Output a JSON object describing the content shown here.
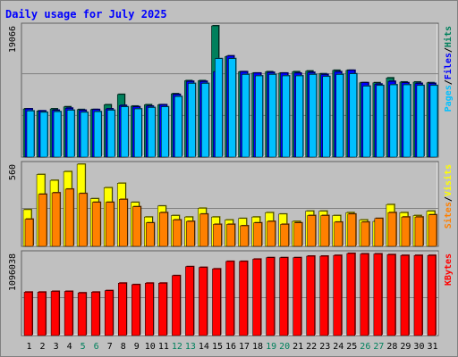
{
  "colors": {
    "hits": "#00805c",
    "files": "#0000ff",
    "pages": "#00c0ff",
    "visits": "#ffff00",
    "sites": "#ff8000",
    "kbytes": "#ff0000",
    "title": "#0000ff",
    "weekend_label": "#00805c",
    "grid": "#808080",
    "panel_bg": "#c0c0c0"
  },
  "chart_data": {
    "type": "bar",
    "title": "Daily usage for July 2025",
    "categories": [
      "1",
      "2",
      "3",
      "4",
      "5",
      "6",
      "7",
      "8",
      "9",
      "10",
      "11",
      "12",
      "13",
      "14",
      "15",
      "16",
      "17",
      "18",
      "19",
      "20",
      "21",
      "22",
      "23",
      "24",
      "25",
      "26",
      "27",
      "28",
      "29",
      "30",
      "31"
    ],
    "weekend_days": [
      "5",
      "6",
      "12",
      "13",
      "19",
      "20",
      "26",
      "27"
    ],
    "panels": [
      {
        "name": "usage-panel",
        "ymax_label": "19066",
        "ymax": 19066,
        "legend": [
          {
            "text": "Pages",
            "color_key": "pages"
          },
          {
            "text": "/",
            "color_key": "separator"
          },
          {
            "text": "Files",
            "color_key": "files"
          },
          {
            "text": "/",
            "color_key": "separator"
          },
          {
            "text": "Hits",
            "color_key": "hits"
          }
        ],
        "series": [
          {
            "name": "Hits",
            "color_key": "hits",
            "values": [
              7000,
              6700,
              7000,
              7300,
              6900,
              6900,
              7600,
              9100,
              7400,
              7600,
              7600,
              9200,
              11100,
              11100,
              19066,
              14600,
              12400,
              12200,
              12400,
              12200,
              12400,
              12500,
              12100,
              12600,
              12600,
              10800,
              10800,
              11500,
              10900,
              10900,
              10800
            ]
          },
          {
            "name": "Files",
            "color_key": "files",
            "values": [
              7000,
              6700,
              6800,
              7100,
              6800,
              6900,
              7000,
              7500,
              7300,
              7400,
              7600,
              9100,
              11000,
              11000,
              12400,
              14700,
              12400,
              12200,
              12300,
              12200,
              12200,
              12300,
              12000,
              12400,
              12600,
              10800,
              10600,
              11000,
              10800,
              10700,
              10700
            ]
          },
          {
            "name": "Pages",
            "color_key": "pages",
            "values": [
              6700,
              6500,
              6600,
              6800,
              6500,
              6600,
              6800,
              7300,
              7000,
              7200,
              7300,
              8800,
              10700,
              10700,
              14300,
              14300,
              12000,
              11800,
              12000,
              11800,
              11800,
              12000,
              11700,
              12000,
              12100,
              10300,
              10400,
              10500,
              10500,
              10400,
              10400
            ]
          }
        ]
      },
      {
        "name": "visits-panel",
        "ymax_label": "560",
        "ymax": 560,
        "legend": [
          {
            "text": "Sites",
            "color_key": "sites"
          },
          {
            "text": "/",
            "color_key": "separator"
          },
          {
            "text": "Visits",
            "color_key": "visits"
          }
        ],
        "series": [
          {
            "name": "Visits",
            "color_key": "visits",
            "values": [
              250,
              490,
              450,
              510,
              560,
              325,
              400,
              430,
              300,
              200,
              275,
              210,
              200,
              260,
              200,
              180,
              190,
              200,
              230,
              220,
              170,
              240,
              240,
              210,
              230,
              180,
              170,
              285,
              230,
              210,
              240
            ]
          },
          {
            "name": "Sites",
            "color_key": "sites",
            "values": [
              185,
              355,
              365,
              390,
              360,
              300,
              300,
              320,
              270,
              160,
              230,
              180,
              170,
              220,
              150,
              150,
              140,
              160,
              170,
              150,
              160,
              210,
              210,
              165,
              220,
              165,
              190,
              230,
              200,
              200,
              215
            ]
          }
        ]
      },
      {
        "name": "kbytes-panel",
        "ymax_label": "1096038",
        "ymax": 1096038,
        "legend": [
          {
            "text": "KBytes",
            "color_key": "kbytes"
          }
        ],
        "series": [
          {
            "name": "KBytes",
            "color_key": "kbytes",
            "values": [
              580000,
              580000,
              590000,
              590000,
              570000,
              580000,
              600000,
              700000,
              680000,
              700000,
              700000,
              800000,
              920000,
              910000,
              890000,
              990000,
              990000,
              1020000,
              1040000,
              1040000,
              1040000,
              1060000,
              1060000,
              1070000,
              1096038,
              1090000,
              1090000,
              1080000,
              1070000,
              1070000,
              1070000
            ]
          }
        ]
      }
    ]
  }
}
